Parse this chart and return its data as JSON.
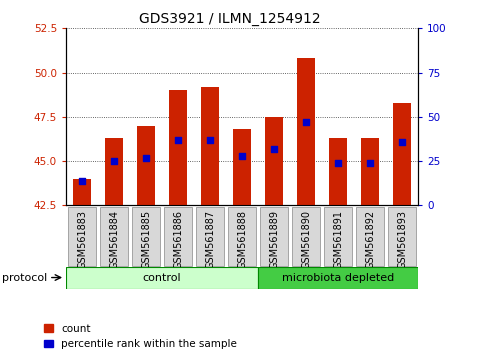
{
  "title": "GDS3921 / ILMN_1254912",
  "samples": [
    "GSM561883",
    "GSM561884",
    "GSM561885",
    "GSM561886",
    "GSM561887",
    "GSM561888",
    "GSM561889",
    "GSM561890",
    "GSM561891",
    "GSM561892",
    "GSM561893"
  ],
  "count_values": [
    44.0,
    46.3,
    47.0,
    49.0,
    49.2,
    46.8,
    47.5,
    50.8,
    46.3,
    46.3,
    48.3
  ],
  "percentile_values": [
    14,
    25,
    27,
    37,
    37,
    28,
    32,
    47,
    24,
    24,
    36
  ],
  "ylim_left": [
    42.5,
    52.5
  ],
  "ylim_right": [
    0,
    100
  ],
  "yticks_left": [
    42.5,
    45.0,
    47.5,
    50.0,
    52.5
  ],
  "yticks_right": [
    0,
    25,
    50,
    75,
    100
  ],
  "bar_color": "#cc2200",
  "dot_color": "#0000cc",
  "bar_bottom": 42.5,
  "bg_color": "#ffffff",
  "plot_bg": "#ffffff",
  "control_color": "#ccffcc",
  "microbiota_color": "#44cc44",
  "control_count": 6,
  "legend_count_label": "count",
  "legend_pct_label": "percentile rank within the sample",
  "protocol_label": "protocol",
  "control_label": "control",
  "microbiota_label": "microbiota depleted",
  "title_fontsize": 10,
  "axis_fontsize": 7.5,
  "tick_fontsize": 7,
  "legend_fontsize": 7.5,
  "protocol_fontsize": 8,
  "group_fontsize": 8
}
